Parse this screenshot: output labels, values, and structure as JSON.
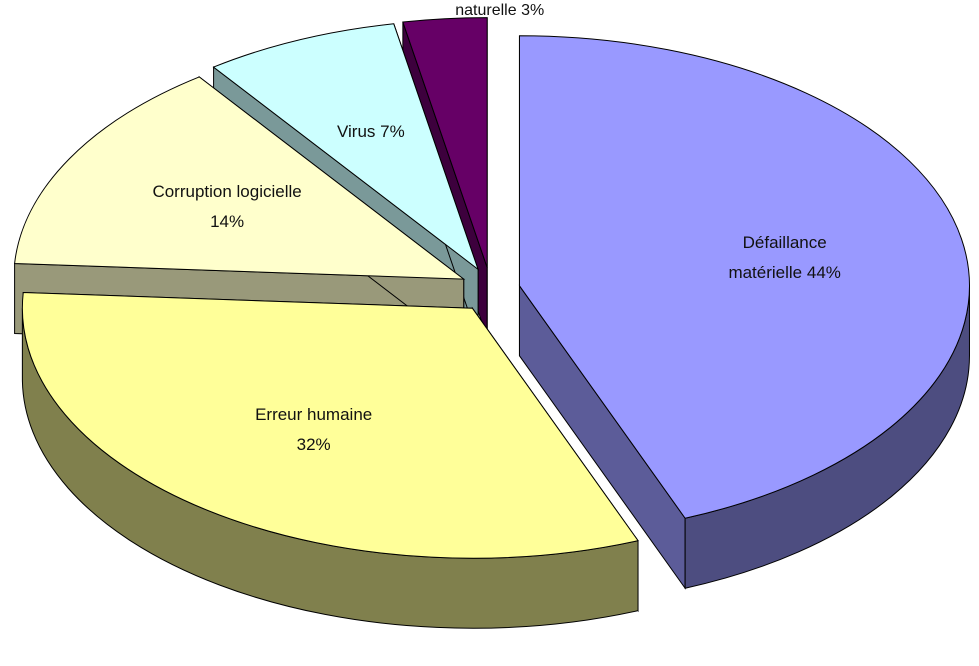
{
  "chart_data": {
    "type": "pie",
    "categories": [
      "Défaillance matérielle",
      "Erreur humaine",
      "Corruption logicielle",
      "Virus",
      "Catastrophes naturelle"
    ],
    "values": [
      44,
      32,
      14,
      7,
      3
    ],
    "value_labels": [
      "44%",
      "32%",
      "14%",
      "7%",
      "3%"
    ],
    "colors": [
      "#9999ff",
      "#ffff99",
      "#ffffcc",
      "#ccffff",
      "#660066"
    ]
  }
}
